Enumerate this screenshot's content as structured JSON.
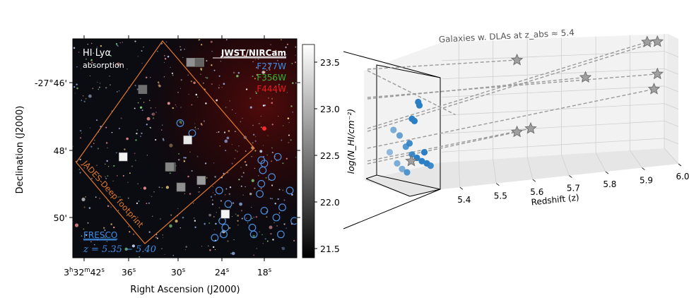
{
  "chart_data": [
    {
      "type": "scatter",
      "panel": "sky-map",
      "inset_title": "HI Lyα",
      "inset_subtitle": "absorption",
      "legend_title": "JWST/NIRCam",
      "filters": [
        {
          "name": "F277W",
          "color": "#3f8ee6"
        },
        {
          "name": "F356W",
          "color": "#2fb62f"
        },
        {
          "name": "F444W",
          "color": "#e81b1b"
        }
      ],
      "footprint_label": "JADES-Deep footprint",
      "survey_label": "FRESCO",
      "redshift_label": "z = 5.35 − 5.40",
      "xlabel": "Right Ascension (J2000)",
      "ylabel": "Declination (J2000)",
      "xticks": [
        {
          "h": "3",
          "m": "32",
          "s": "42"
        },
        {
          "s": "36"
        },
        {
          "s": "30"
        },
        {
          "s": "24"
        },
        {
          "s": "18"
        }
      ],
      "yticks": [
        "-27°46'",
        "48'",
        "50'"
      ],
      "colorbar": {
        "ticks": [
          "23.5",
          "23.0",
          "22.5",
          "22.0",
          "21.5"
        ],
        "range": [
          21.4,
          23.7
        ],
        "cmap": "gray"
      },
      "dla_squares": [
        {
          "ra_s": 34.2,
          "dec_m": 46.2,
          "logN": 22.4
        },
        {
          "ra_s": 27.8,
          "dec_m": 45.4,
          "logN": 22.7
        },
        {
          "ra_s": 26.6,
          "dec_m": 45.4,
          "logN": 22.3
        },
        {
          "ra_s": 28.2,
          "dec_m": 47.7,
          "logN": 23.5
        },
        {
          "ra_s": 36.8,
          "dec_m": 48.2,
          "logN": 23.6
        },
        {
          "ra_s": 30.4,
          "dec_m": 48.5,
          "logN": 22.1
        },
        {
          "ra_s": 30.6,
          "dec_m": 48.5,
          "logN": 22.6
        },
        {
          "ra_s": 26.4,
          "dec_m": 48.9,
          "logN": 22.8
        },
        {
          "ra_s": 29.1,
          "dec_m": 49.1,
          "logN": 22.7
        },
        {
          "ra_s": 23.2,
          "dec_m": 49.9,
          "logN": 23.6
        }
      ],
      "fresco_galaxies": [
        {
          "ra_s": 29.2,
          "dec_m": 47.2
        },
        {
          "ra_s": 27.6,
          "dec_m": 47.5
        },
        {
          "ra_s": 18.4,
          "dec_m": 48.3
        },
        {
          "ra_s": 18.0,
          "dec_m": 48.4
        },
        {
          "ra_s": 16.2,
          "dec_m": 48.2
        },
        {
          "ra_s": 18.2,
          "dec_m": 48.6
        },
        {
          "ra_s": 17.0,
          "dec_m": 48.8
        },
        {
          "ra_s": 18.4,
          "dec_m": 49.0
        },
        {
          "ra_s": 24.0,
          "dec_m": 49.2
        },
        {
          "ra_s": 18.6,
          "dec_m": 49.3
        },
        {
          "ra_s": 14.6,
          "dec_m": 49.2
        },
        {
          "ra_s": 22.8,
          "dec_m": 49.6
        },
        {
          "ra_s": 18.0,
          "dec_m": 49.8
        },
        {
          "ra_s": 15.6,
          "dec_m": 49.7
        },
        {
          "ra_s": 20.2,
          "dec_m": 50.0
        },
        {
          "ra_s": 16.4,
          "dec_m": 50.0
        },
        {
          "ra_s": 23.6,
          "dec_m": 50.1
        },
        {
          "ra_s": 14.0,
          "dec_m": 50.1
        },
        {
          "ra_s": 23.2,
          "dec_m": 50.3
        },
        {
          "ra_s": 19.6,
          "dec_m": 50.3
        },
        {
          "ra_s": 23.4,
          "dec_m": 50.5
        },
        {
          "ra_s": 19.4,
          "dec_m": 50.5
        },
        {
          "ra_s": 24.6,
          "dec_m": 50.6
        },
        {
          "ra_s": 15.8,
          "dec_m": 50.5
        }
      ]
    },
    {
      "type": "scatter3d",
      "panel": "redshift-cube",
      "title": "Galaxies w. DLAs at z_abs ≈ 5.4",
      "xlabel": "Redshift (z)",
      "zlabel": "log(N_HI/cm⁻²)",
      "xticks": [
        "5.4",
        "5.5",
        "5.6",
        "5.7",
        "5.8",
        "5.9",
        "6.0"
      ],
      "xlim": [
        5.35,
        6.0
      ],
      "logN_lim": [
        21.4,
        23.7
      ],
      "dla_absorber_z": 5.39,
      "stars": [
        {
          "z": 5.39,
          "logN": 22.3
        },
        {
          "z": 5.57,
          "logN": 23.3
        },
        {
          "z": 5.95,
          "logN": 23.55
        },
        {
          "z": 5.98,
          "logN": 23.55
        },
        {
          "z": 5.57,
          "logN": 21.9
        },
        {
          "z": 5.61,
          "logN": 21.95
        },
        {
          "z": 5.77,
          "logN": 22.9
        },
        {
          "z": 5.98,
          "logN": 22.9
        },
        {
          "z": 5.97,
          "logN": 22.6
        }
      ],
      "galaxies_z": [
        {
          "z": 5.352,
          "y": 0.3,
          "alpha": 0.5
        },
        {
          "z": 5.37,
          "y": 0.6,
          "alpha": 1.0
        },
        {
          "z": 5.372,
          "y": 0.58,
          "alpha": 1.0
        },
        {
          "z": 5.375,
          "y": 0.75,
          "alpha": 1.0
        },
        {
          "z": 5.376,
          "y": 0.72,
          "alpha": 1.0
        },
        {
          "z": 5.355,
          "y": 0.5,
          "alpha": 0.6
        },
        {
          "z": 5.36,
          "y": 0.45,
          "alpha": 0.7
        },
        {
          "z": 5.365,
          "y": 0.35,
          "alpha": 0.8
        },
        {
          "z": 5.368,
          "y": 0.38,
          "alpha": 0.9
        },
        {
          "z": 5.37,
          "y": 0.28,
          "alpha": 0.9
        },
        {
          "z": 5.374,
          "y": 0.25,
          "alpha": 1.0
        },
        {
          "z": 5.378,
          "y": 0.22,
          "alpha": 1.0
        },
        {
          "z": 5.38,
          "y": 0.3,
          "alpha": 1.0
        },
        {
          "z": 5.382,
          "y": 0.2,
          "alpha": 1.0
        },
        {
          "z": 5.385,
          "y": 0.18,
          "alpha": 0.9
        },
        {
          "z": 5.358,
          "y": 0.2,
          "alpha": 0.6
        },
        {
          "z": 5.362,
          "y": 0.15,
          "alpha": 0.6
        },
        {
          "z": 5.366,
          "y": 0.12,
          "alpha": 0.8
        }
      ]
    }
  ]
}
